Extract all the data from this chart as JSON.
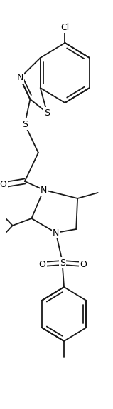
{
  "figure_width": 1.59,
  "figure_height": 5.73,
  "dpi": 100,
  "bg_color": "#ffffff",
  "line_color": "#1a1a1a",
  "line_width": 1.3,
  "xlim": [
    0,
    159
  ],
  "ylim": [
    0,
    573
  ]
}
